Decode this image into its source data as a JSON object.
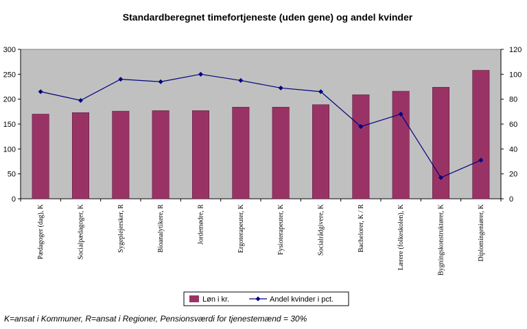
{
  "chart_data": {
    "type": "bar",
    "title": "Standardberegnet timefortjeneste (uden gene) og andel kvinder",
    "categories": [
      "Pædagoger (dag), K",
      "Socialpædagoger, K",
      "Sygeplejersker, R",
      "Bioanalytikere, R",
      "Jordemødre, R",
      "Ergoterapeuter, K",
      "Fysioterapeuter, K",
      "Socialrådgivere, K",
      "Bachelorer, K / R",
      "Lærere (folkeskolen), K",
      "Bygningskonstruktører, K",
      "Diplomingeniører, K"
    ],
    "series": [
      {
        "name": "Løn i kr.",
        "type": "bar",
        "axis": "left",
        "color": "#993366",
        "values": [
          170,
          173,
          176,
          177,
          177,
          184,
          184,
          189,
          209,
          216,
          224,
          258
        ]
      },
      {
        "name": "Andel kvinder i pct.",
        "type": "line",
        "axis": "right",
        "color": "#000080",
        "values": [
          86,
          79,
          96,
          94,
          100,
          95,
          89,
          86,
          58,
          68,
          17,
          31
        ]
      }
    ],
    "ylim_left": [
      0,
      300
    ],
    "yticks_left": [
      "0",
      "50",
      "100",
      "150",
      "200",
      "250",
      "300"
    ],
    "ylim_right": [
      0,
      120
    ],
    "yticks_right": [
      "0",
      "20",
      "40",
      "60",
      "80",
      "100",
      "120"
    ],
    "grid": false,
    "plot_background": "#c0c0c0",
    "legend_position": "bottom"
  },
  "footnote": "K=ansat i Kommuner, R=ansat i Regioner, Pensionsværdi for tjenestemænd = 30%"
}
